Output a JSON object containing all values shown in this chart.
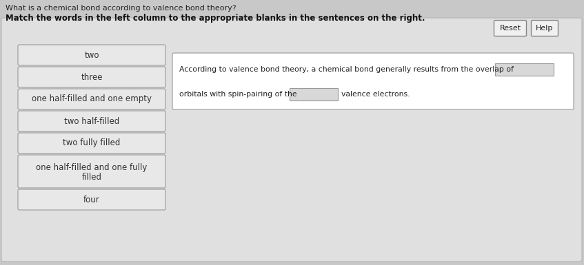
{
  "title_line1": "What is a chemical bond according to valence bond theory?",
  "title_line2": "Match the words in the left column to the appropriate blanks in the sentences on the right.",
  "page_bg": "#c8c8c8",
  "panel_bg": "#e0e0e0",
  "panel_edge": "#bbbbbb",
  "item_box_color": "#e8e8e8",
  "item_box_edge": "#999999",
  "right_text_line1": "According to valence bond theory, a chemical bond generally results from the overlap of",
  "right_text_line2": "orbitals with spin-pairing of the",
  "right_text_line3": "valence electrons.",
  "blank_box_color": "#d8d8d8",
  "blank_box_edge": "#999999",
  "right_panel_bg": "#ffffff",
  "right_panel_edge": "#aaaaaa",
  "reset_label": "Reset",
  "help_label": "Help",
  "button_bg": "#f0f0f0",
  "button_edge": "#888888",
  "left_items": [
    "two",
    "three",
    "one half-filled and one empty",
    "two half-filled",
    "two fully filled",
    "one half-filled and one fully\nfilled",
    "four"
  ]
}
